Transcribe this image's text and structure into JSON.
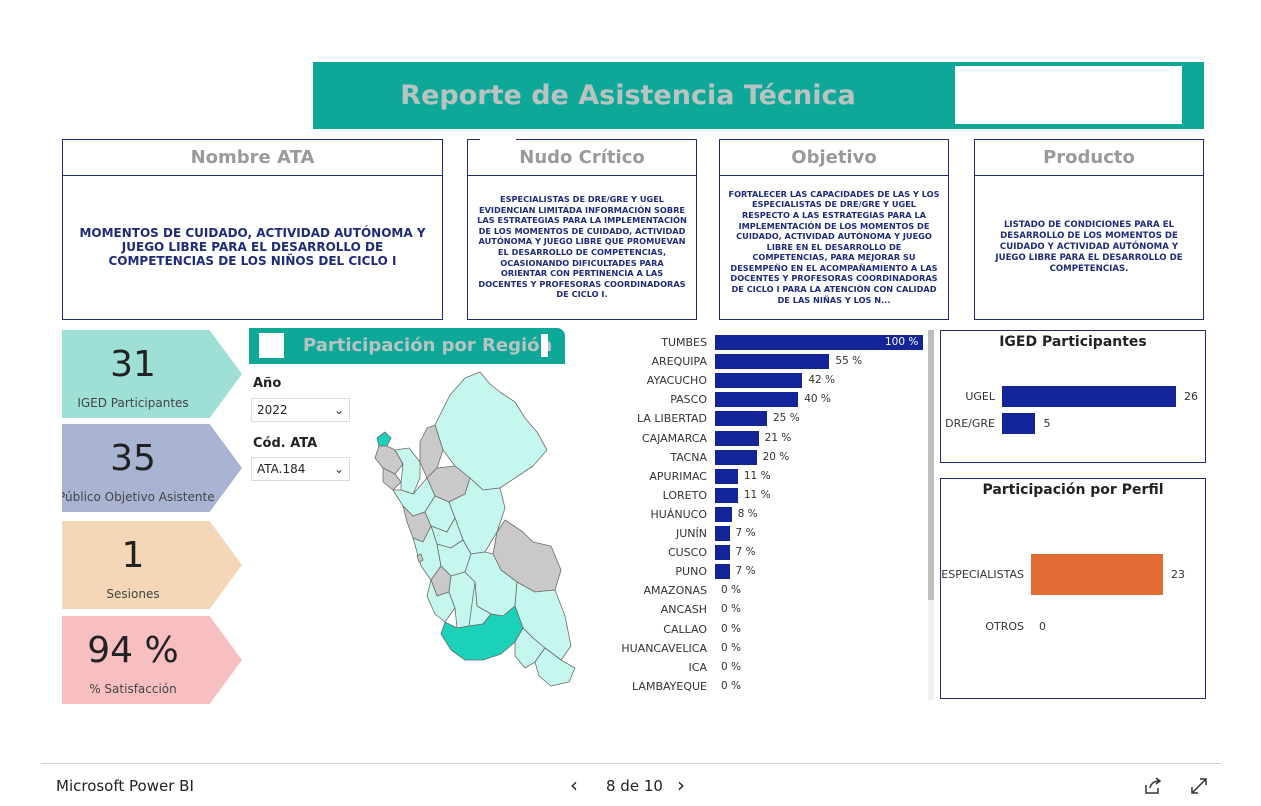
{
  "header": {
    "title": "Reporte de Asistencia Técnica"
  },
  "info_cards": [
    {
      "title": "Nombre ATA",
      "body": "MOMENTOS DE CUIDADO, ACTIVIDAD AUTÓNOMA Y JUEGO LIBRE PARA EL DESARROLLO DE COMPETENCIAS DE LOS NIÑOS DEL CICLO I"
    },
    {
      "title": "Nudo Crítico",
      "body": "ESPECIALISTAS DE DRE/GRE Y UGEL EVIDENCIAN LIMITADA INFORMACIÓN SOBRE LAS ESTRATEGIAS PARA LA IMPLEMENTACIÓN DE LOS MOMENTOS DE CUIDADO, ACTIVIDAD AUTÓNOMA Y JUEGO LIBRE QUE PROMUEVAN EL DESARROLLO DE COMPETENCIAS, OCASIONANDO DIFICULTADES PARA ORIENTAR CON PERTINENCIA A LAS DOCENTES Y PROFESORAS COORDINADORAS DE CICLO I."
    },
    {
      "title": "Objetivo",
      "body": "FORTALECER LAS CAPACIDADES DE LAS Y LOS ESPECIALISTAS DE DRE/GRE Y UGEL RESPECTO A LAS ESTRATEGIAS PARA LA IMPLEMENTACIÓN DE LOS MOMENTOS DE CUIDADO, ACTIVIDAD AUTÓNOMA Y JUEGO LIBRE EN EL DESARROLLO DE COMPETENCIAS, PARA MEJORAR SU DESEMPEÑO EN EL ACOMPAÑAMIENTO A LAS DOCENTES Y PROFESORAS COORDINADORAS DE CICLO I PARA LA ATENCIÓN CON CALIDAD DE LAS NIÑAS Y LOS N..."
    },
    {
      "title": "Producto",
      "body": "LISTADO DE CONDICIONES PARA EL DESARROLLO DE LOS MOMENTOS DE CUIDADO Y ACTIVIDAD AUTÓNOMA Y JUEGO LIBRE PARA EL DESARROLLO DE COMPETENCIAS."
    }
  ],
  "kpis": [
    {
      "value": "31",
      "label": "IGED Participantes",
      "color": "#9ee0d6"
    },
    {
      "value": "35",
      "label": "Público Objetivo Asistente",
      "color": "#a9b4d2"
    },
    {
      "value": "1",
      "label": "Sesiones",
      "color": "#f3d7b6"
    },
    {
      "value": "94 %",
      "label": "% Satisfacción",
      "color": "#f7bfc0"
    }
  ],
  "region_section": {
    "title": "Participación por Región"
  },
  "filters": {
    "year_label": "Año",
    "year_value": "2022",
    "ata_label": "Cód. ATA",
    "ata_value": "ATA.184"
  },
  "chart_data": [
    {
      "type": "bar",
      "orientation": "horizontal",
      "categories": [
        "TUMBES",
        "AREQUIPA",
        "AYACUCHO",
        "PASCO",
        "LA LIBERTAD",
        "CAJAMARCA",
        "TACNA",
        "APURIMAC",
        "LORETO",
        "HUÁNUCO",
        "JUNÍN",
        "CUSCO",
        "PUNO",
        "AMAZONAS",
        "ANCASH",
        "CALLAO",
        "HUANCAVELICA",
        "ICA",
        "LAMBAYEQUE"
      ],
      "values": [
        100,
        55,
        42,
        40,
        25,
        21,
        20,
        11,
        11,
        8,
        7,
        7,
        7,
        0,
        0,
        0,
        0,
        0,
        0
      ],
      "labels": [
        "100 %",
        "55 %",
        "42 %",
        "40 %",
        "25 %",
        "21 %",
        "20 %",
        "11 %",
        "11 %",
        "8 %",
        "7 %",
        "7 %",
        "7 %",
        "0 %",
        "0 %",
        "0 %",
        "0 %",
        "0 %",
        "0 %"
      ],
      "color": "#14259a"
    },
    {
      "type": "bar",
      "orientation": "horizontal",
      "title": "IGED Participantes",
      "categories": [
        "UGEL",
        "DRE/GRE"
      ],
      "values": [
        26,
        5
      ],
      "color": "#14259a"
    },
    {
      "type": "bar",
      "orientation": "horizontal",
      "title": "Participación por Perfil",
      "categories": [
        "ESPECIALISTAS",
        "OTROS"
      ],
      "values": [
        23,
        0
      ],
      "color": "#e36c34"
    }
  ],
  "map": {
    "highlight_color": "#1bd1b9",
    "light_color": "#c6f7ef",
    "gray_color": "#c9c9c9",
    "stroke_color": "#6b6b6b"
  },
  "footer": {
    "brand": "Microsoft Power BI",
    "page_indicator": "8 de 10",
    "prev_icon": "chevron-left",
    "next_icon": "chevron-right"
  }
}
